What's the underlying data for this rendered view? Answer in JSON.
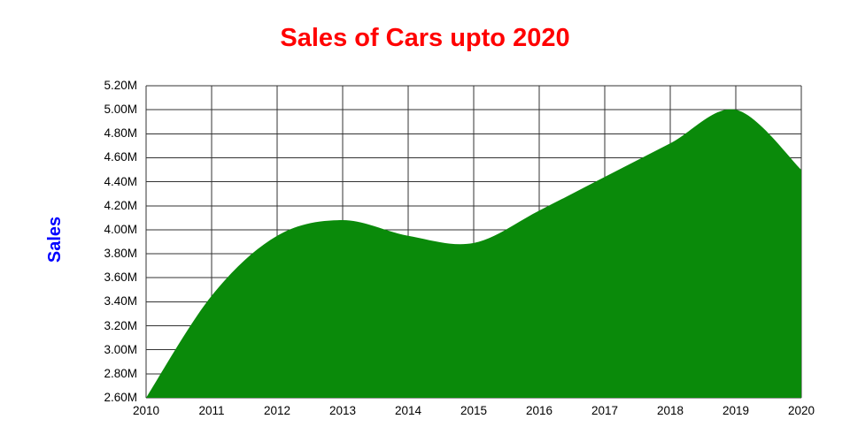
{
  "chart_data": {
    "type": "area",
    "title": "Sales of Cars upto 2020",
    "ylabel": "Sales",
    "xlabel": "",
    "categories": [
      "2010",
      "2011",
      "2012",
      "2013",
      "2014",
      "2015",
      "2016",
      "2017",
      "2018",
      "2019",
      "2020"
    ],
    "values": [
      2.6,
      3.45,
      3.95,
      4.08,
      3.95,
      3.89,
      4.16,
      4.44,
      4.72,
      5.0,
      4.5
    ],
    "unit": "M",
    "ylim": [
      2.6,
      5.2
    ],
    "y_step": 0.2,
    "y_ticks": [
      "5.20M",
      "5.00M",
      "4.80M",
      "4.60M",
      "4.40M",
      "4.20M",
      "4.00M",
      "3.80M",
      "3.60M",
      "3.40M",
      "3.20M",
      "3.00M",
      "2.80M",
      "2.60M"
    ],
    "grid": true,
    "curve": "smooth",
    "legend": "none",
    "colors": {
      "area": "#0a8a0a",
      "title": "#ff0000",
      "ylabel": "#0000ff",
      "grid": "#333333",
      "tick_text": "#000000",
      "background": "#ffffff"
    }
  }
}
